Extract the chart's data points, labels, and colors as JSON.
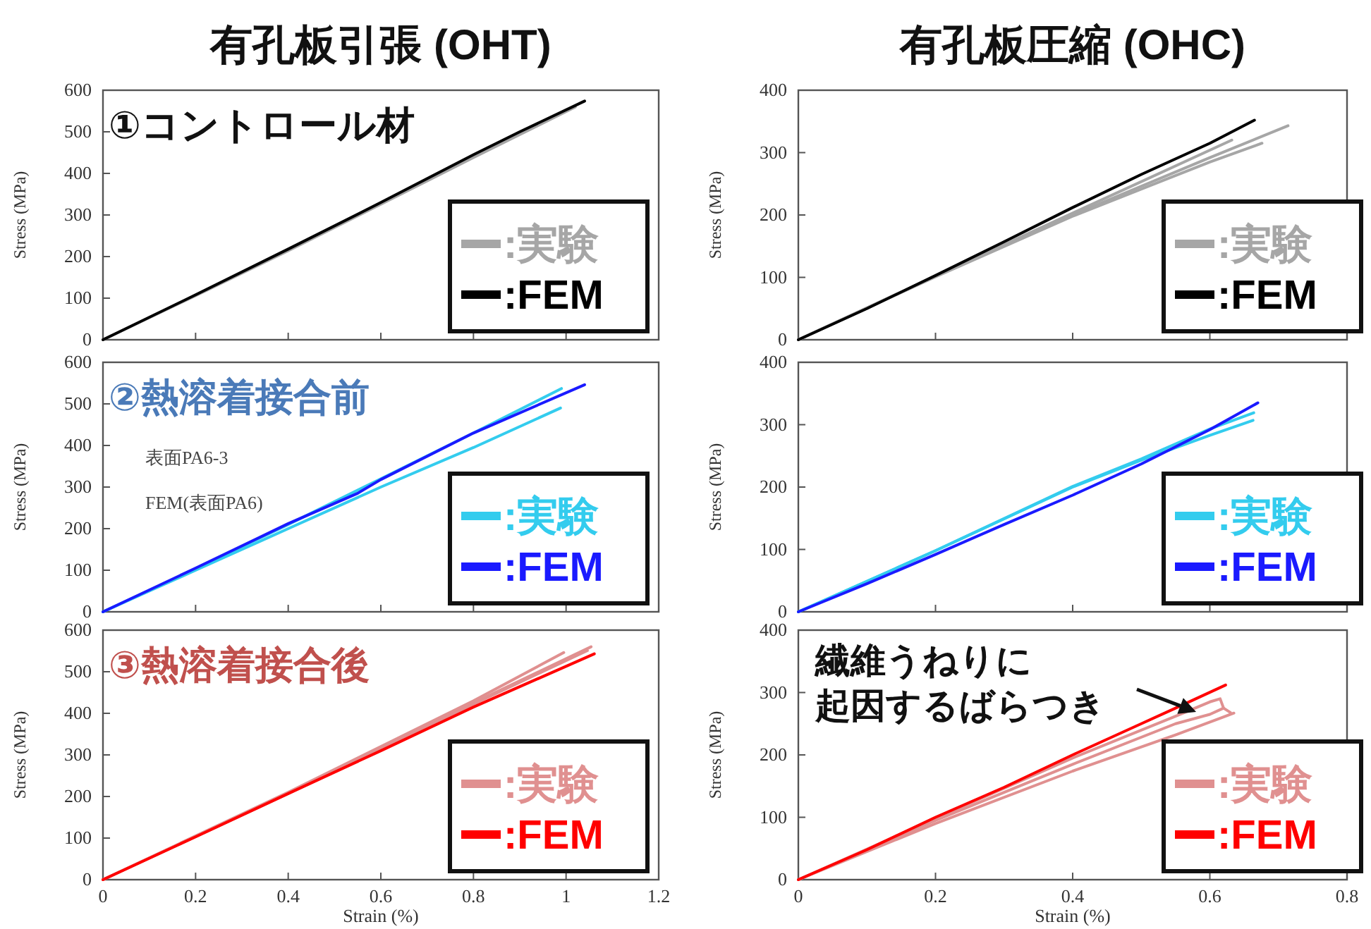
{
  "chart_data": [
    {
      "type": "line",
      "title": "有孔板引張 (OHT)",
      "subtitle": "①コントロール材",
      "ylabel": "Stress (MPa)",
      "xlim": [
        0,
        1.2
      ],
      "xticks": [
        0,
        0.2,
        0.4,
        0.6,
        0.8,
        1,
        1.2
      ],
      "ylim": [
        0,
        600
      ],
      "yticks": [
        0,
        100,
        200,
        300,
        400,
        500,
        600
      ],
      "tick_labels": "y",
      "legend": "bottom right",
      "series": [
        {
          "name": ":実験",
          "color": "#a6a6a6",
          "x": [
            0,
            0.2,
            0.4,
            0.6,
            0.8,
            1.02
          ],
          "values": [
            0,
            106,
            214,
            326,
            438,
            560
          ]
        },
        {
          "name": ":FEM",
          "color": "#000000",
          "x": [
            0,
            0.2,
            0.4,
            0.6,
            0.8,
            0.9,
            1.04
          ],
          "values": [
            0,
            108,
            218,
            330,
            445,
            500,
            574
          ]
        }
      ]
    },
    {
      "type": "line",
      "title": "有孔板圧縮 (OHC)",
      "ylabel": "Stress (MPa)",
      "xlim": [
        0,
        0.8
      ],
      "xticks": [
        0,
        0.2,
        0.4,
        0.6,
        0.8
      ],
      "ylim": [
        0,
        400
      ],
      "yticks": [
        0,
        100,
        200,
        300,
        400
      ],
      "tick_labels": "y",
      "legend": "bottom right",
      "series": [
        {
          "name": ":実験",
          "color": "#a6a6a6",
          "x": [
            0,
            0.2,
            0.4,
            0.6,
            0.714
          ],
          "values": [
            0,
            102,
            200,
            292,
            343
          ]
        },
        {
          "color": "#a6a6a6",
          "x": [
            0,
            0.2,
            0.4,
            0.632
          ],
          "values": [
            0,
            102,
            203,
            320
          ]
        },
        {
          "color": "#a6a6a6",
          "x": [
            0,
            0.2,
            0.4,
            0.6,
            0.676
          ],
          "values": [
            0,
            101,
            198,
            285,
            315
          ]
        },
        {
          "name": ":FEM",
          "color": "#000000",
          "x": [
            0,
            0.1,
            0.2,
            0.3,
            0.4,
            0.5,
            0.6,
            0.665
          ],
          "values": [
            0,
            50,
            103,
            157,
            212,
            265,
            315,
            352
          ]
        }
      ]
    },
    {
      "type": "line",
      "subtitle": "②熱溶着接合前",
      "ylabel": "Stress (MPa)",
      "xlim": [
        0,
        1.2
      ],
      "xticks": [
        0,
        0.2,
        0.4,
        0.6,
        0.8,
        1,
        1.2
      ],
      "ylim": [
        0,
        600
      ],
      "yticks": [
        0,
        100,
        200,
        300,
        400,
        500,
        600
      ],
      "tick_labels": "y",
      "legend": "bottom right",
      "annotations": [
        "表面PA6-3",
        "FEM(表面PA6)"
      ],
      "series": [
        {
          "name": ":実験",
          "color": "#33ccee",
          "x": [
            0,
            0.2,
            0.4,
            0.6,
            0.8,
            0.99
          ],
          "values": [
            0,
            103,
            210,
            320,
            430,
            537
          ]
        },
        {
          "color": "#33ccee",
          "x": [
            0,
            0.2,
            0.4,
            0.6,
            0.8,
            0.988
          ],
          "values": [
            0,
            100,
            200,
            300,
            395,
            490
          ]
        },
        {
          "name": ":FEM",
          "color": "#1a1aff",
          "x": [
            0,
            0.2,
            0.4,
            0.55,
            0.6,
            0.8,
            1.04
          ],
          "values": [
            0,
            105,
            212,
            285,
            318,
            430,
            546
          ]
        }
      ]
    },
    {
      "type": "line",
      "ylabel": "Stress (MPa)",
      "xlim": [
        0,
        0.8
      ],
      "xticks": [
        0,
        0.2,
        0.4,
        0.6,
        0.8
      ],
      "ylim": [
        0,
        400
      ],
      "yticks": [
        0,
        100,
        200,
        300,
        400
      ],
      "tick_labels": "y",
      "legend": "bottom right",
      "series": [
        {
          "name": ":実験",
          "color": "#33ccee",
          "x": [
            0,
            0.2,
            0.4,
            0.5,
            0.6,
            0.664
          ],
          "values": [
            0,
            98,
            201,
            245,
            293,
            319
          ]
        },
        {
          "color": "#33ccee",
          "x": [
            0,
            0.2,
            0.4,
            0.5,
            0.6,
            0.663
          ],
          "values": [
            0,
            98,
            200,
            243,
            283,
            307
          ]
        },
        {
          "name": ":FEM",
          "color": "#1a1aff",
          "x": [
            0,
            0.1,
            0.2,
            0.3,
            0.4,
            0.5,
            0.6,
            0.67
          ],
          "values": [
            0,
            45,
            92,
            140,
            187,
            237,
            292,
            335
          ]
        }
      ]
    },
    {
      "type": "line",
      "subtitle": "③熱溶着接合後",
      "xlabel": "Strain (%)",
      "ylabel": "Stress (MPa)",
      "xlim": [
        0,
        1.2
      ],
      "xticks": [
        0,
        0.2,
        0.4,
        0.6,
        0.8,
        1,
        1.2
      ],
      "ylim": [
        0,
        600
      ],
      "yticks": [
        0,
        100,
        200,
        300,
        400,
        500,
        600
      ],
      "legend": "bottom right",
      "series": [
        {
          "name": ":実験",
          "color": "#e09090",
          "x": [
            0,
            0.4,
            0.8,
            1.054
          ],
          "values": [
            0,
            208,
            425,
            560
          ]
        },
        {
          "color": "#e09090",
          "x": [
            0,
            0.4,
            0.8,
            0.995
          ],
          "values": [
            0,
            210,
            430,
            546
          ]
        },
        {
          "color": "#e09090",
          "x": [
            0,
            0.4,
            0.8,
            1.046
          ],
          "values": [
            0,
            207,
            422,
            551
          ]
        },
        {
          "name": ":FEM",
          "color": "#ff0000",
          "x": [
            0,
            0.2,
            0.4,
            0.6,
            0.8,
            1.061
          ],
          "values": [
            0,
            103,
            207,
            310,
            415,
            543
          ]
        }
      ]
    },
    {
      "type": "line",
      "xlabel": "Strain (%)",
      "ylabel": "Stress (MPa)",
      "xlim": [
        0,
        0.8
      ],
      "xticks": [
        0,
        0.2,
        0.4,
        0.6,
        0.8
      ],
      "ylim": [
        0,
        400
      ],
      "yticks": [
        0,
        100,
        200,
        300,
        400
      ],
      "legend": "bottom right",
      "annotations": [
        "繊維うねりに",
        {
          "text": "起因するばらつき",
          "x": 0.58,
          "y": 269
        }
      ],
      "series": [
        {
          "name": ":実験",
          "color": "#e09090",
          "x": [
            0,
            0.2,
            0.4,
            0.55,
            0.6,
            0.615,
            0.62
          ],
          "values": [
            0,
            98,
            195,
            262,
            285,
            290,
            275
          ]
        },
        {
          "color": "#e09090",
          "x": [
            0,
            0.2,
            0.4,
            0.55,
            0.6,
            0.62,
            0.63
          ],
          "values": [
            0,
            95,
            185,
            250,
            265,
            275,
            268
          ]
        },
        {
          "color": "#e09090",
          "x": [
            0,
            0.2,
            0.4,
            0.55,
            0.635
          ],
          "values": [
            0,
            90,
            174,
            232,
            267
          ]
        },
        {
          "name": ":FEM",
          "color": "#ff0000",
          "x": [
            0,
            0.1,
            0.2,
            0.3,
            0.4,
            0.5,
            0.55,
            0.623
          ],
          "values": [
            0,
            48,
            100,
            148,
            200,
            250,
            275,
            312
          ]
        }
      ]
    }
  ]
}
